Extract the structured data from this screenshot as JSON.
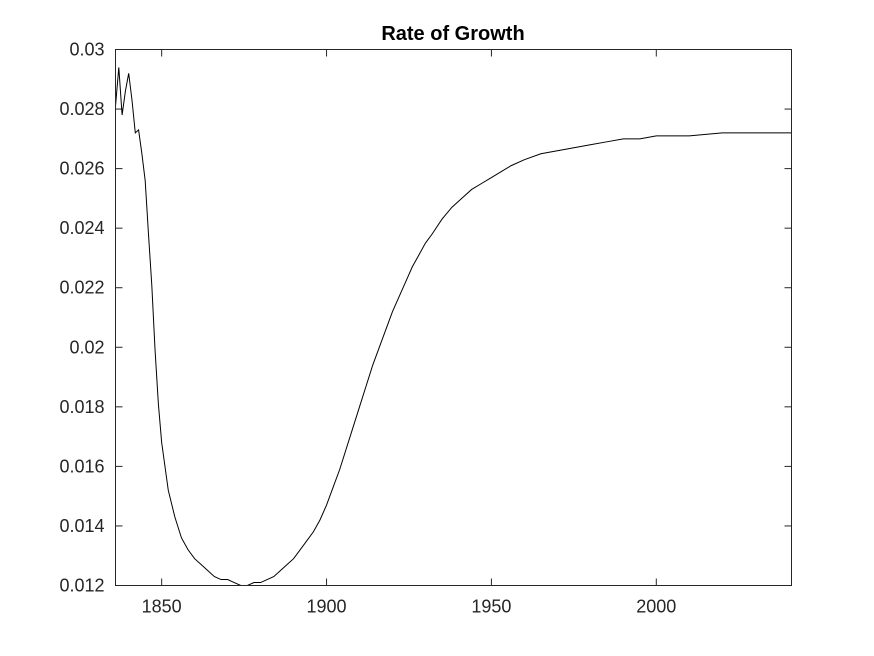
{
  "chart_data": {
    "type": "line",
    "title": "Rate of Growth",
    "xlabel": "",
    "ylabel": "",
    "xlim": [
      1836,
      2041
    ],
    "ylim": [
      0.012,
      0.03
    ],
    "x_ticks": [
      1850,
      1900,
      1950,
      2000
    ],
    "y_ticks": [
      0.012,
      0.014,
      0.016,
      0.018,
      0.02,
      0.022,
      0.024,
      0.026,
      0.028,
      0.03
    ],
    "x_tick_labels": [
      "1850",
      "1900",
      "1950",
      "2000"
    ],
    "y_tick_labels": [
      "0.012",
      "0.014",
      "0.016",
      "0.018",
      "0.02",
      "0.022",
      "0.024",
      "0.026",
      "0.028",
      "0.03"
    ],
    "grid": false,
    "series": [
      {
        "color": "#000000",
        "x": [
          1836,
          1837,
          1838,
          1839,
          1840,
          1841,
          1842,
          1843,
          1844,
          1845,
          1846,
          1847,
          1848,
          1849,
          1850,
          1852,
          1854,
          1856,
          1858,
          1860,
          1862,
          1864,
          1866,
          1868,
          1870,
          1872,
          1874,
          1876,
          1878,
          1880,
          1882,
          1884,
          1886,
          1888,
          1890,
          1892,
          1894,
          1896,
          1898,
          1900,
          1902,
          1904,
          1906,
          1908,
          1910,
          1912,
          1914,
          1916,
          1918,
          1920,
          1922,
          1924,
          1926,
          1928,
          1930,
          1932,
          1935,
          1938,
          1941,
          1944,
          1947,
          1950,
          1953,
          1956,
          1960,
          1965,
          1970,
          1975,
          1980,
          1985,
          1990,
          1995,
          2000,
          2010,
          2020,
          2030,
          2041
        ],
        "y": [
          0.0281,
          0.0294,
          0.0278,
          0.0286,
          0.0292,
          0.0283,
          0.0272,
          0.0273,
          0.0265,
          0.0256,
          0.0238,
          0.0221,
          0.0199,
          0.0181,
          0.0168,
          0.0152,
          0.0143,
          0.0136,
          0.0132,
          0.0129,
          0.0127,
          0.0125,
          0.0123,
          0.0122,
          0.0122,
          0.0121,
          0.012,
          0.012,
          0.0121,
          0.0121,
          0.0122,
          0.0123,
          0.0125,
          0.0127,
          0.0129,
          0.0132,
          0.0135,
          0.0138,
          0.0142,
          0.0147,
          0.0153,
          0.0159,
          0.0166,
          0.0173,
          0.018,
          0.0187,
          0.0194,
          0.02,
          0.0206,
          0.0212,
          0.0217,
          0.0222,
          0.0227,
          0.0231,
          0.0235,
          0.0238,
          0.0243,
          0.0247,
          0.025,
          0.0253,
          0.0255,
          0.0257,
          0.0259,
          0.0261,
          0.0263,
          0.0265,
          0.0266,
          0.0267,
          0.0268,
          0.0269,
          0.027,
          0.027,
          0.0271,
          0.0271,
          0.0272,
          0.0272,
          0.0272
        ]
      }
    ]
  }
}
